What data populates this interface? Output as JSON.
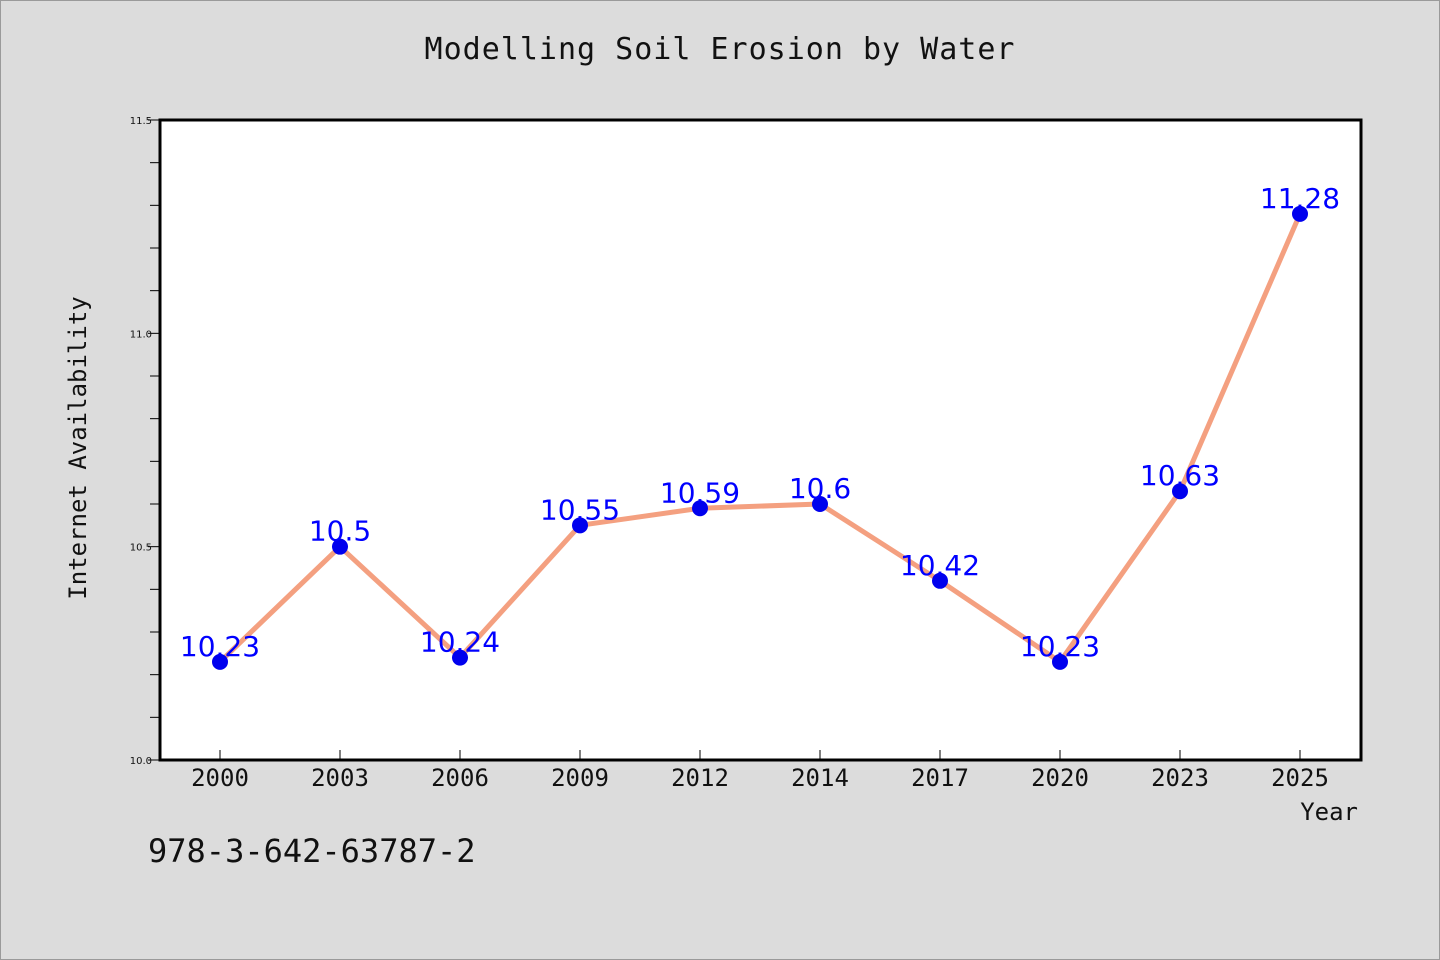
{
  "chart_data": {
    "type": "line",
    "title": "Modelling Soil Erosion by Water",
    "xlabel": "Year",
    "ylabel": "Internet Availability",
    "categories": [
      "2000",
      "2003",
      "2006",
      "2009",
      "2012",
      "2014",
      "2017",
      "2020",
      "2023",
      "2025"
    ],
    "series": [
      {
        "values": [
          10.23,
          10.5,
          10.24,
          10.55,
          10.59,
          10.6,
          10.42,
          10.23,
          10.63,
          11.28
        ],
        "labels": [
          "10.23",
          "10.5",
          "10.24",
          "10.55",
          "10.59",
          "10.6",
          "10.42",
          "10.23",
          "10.63",
          "11.28"
        ],
        "line_color": "#f4a080",
        "marker_color": "#0000ee",
        "label_color": "#0000ff"
      }
    ],
    "ylim": [
      10.0,
      11.5
    ],
    "yticks": [
      "10.0",
      "10.5",
      "11.0",
      "11.5"
    ],
    "grid": false,
    "legend": "none"
  },
  "footer": {
    "isbn": "978-3-642-63787-2"
  },
  "colors": {
    "background": "#dcdcdc",
    "plot_background": "#ffffff"
  }
}
